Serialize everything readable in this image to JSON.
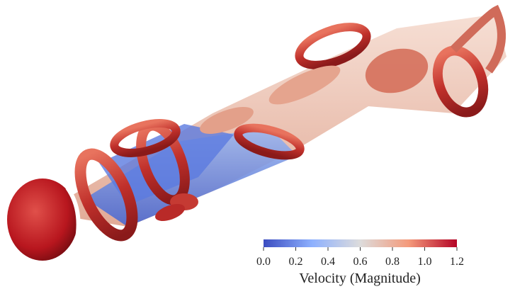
{
  "colorbar": {
    "title": "Velocity (Magnitude)",
    "range": [
      0,
      1.2
    ],
    "ticks": [
      {
        "value": 0,
        "label": "0.0"
      },
      0.2,
      0.4,
      0.6,
      0.8,
      {
        "value": 1,
        "label": "1.0"
      },
      1.2
    ],
    "colormap": [
      "#3b4cc0",
      "#8db0fe",
      "#dddcdc",
      "#f49a7b",
      "#b40426"
    ]
  }
}
